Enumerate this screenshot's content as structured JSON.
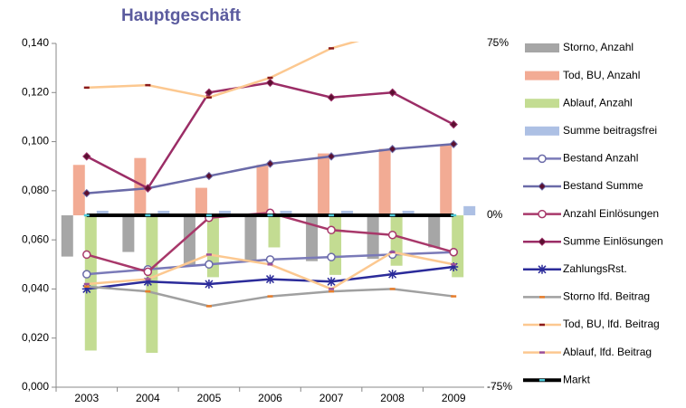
{
  "chart_data": {
    "type": "combo",
    "title": "Hauptgeschäft",
    "categories": [
      "2003",
      "2004",
      "2005",
      "2006",
      "2007",
      "2008",
      "2009"
    ],
    "ylim": [
      0,
      0.14
    ],
    "yticks": [
      {
        "value": 0,
        "label": "0,000"
      },
      {
        "value": 0.02,
        "label": "0,020"
      },
      {
        "value": 0.04,
        "label": "0,040"
      },
      {
        "value": 0.06,
        "label": "0,060"
      },
      {
        "value": 0.08,
        "label": "0,080"
      },
      {
        "value": 0.1,
        "label": "0,100"
      },
      {
        "value": 0.12,
        "label": "0,120"
      },
      {
        "value": 0.14,
        "label": "0,140"
      }
    ],
    "y2lim": [
      -75,
      75
    ],
    "y2ticks": [
      {
        "value": 75,
        "label": "75%"
      },
      {
        "value": 0,
        "label": "0%"
      },
      {
        "value": -75,
        "label": "-75%"
      }
    ],
    "series": [
      {
        "name": "Storno, Anzahl",
        "type": "bar",
        "axis": "y2",
        "color": "#a6a6a6",
        "values": [
          -18,
          -16,
          -22,
          -20,
          -20,
          -19,
          -14
        ]
      },
      {
        "name": "Tod, BU, Anzahl",
        "type": "bar",
        "axis": "y2",
        "color": "#f2ab94",
        "values": [
          22,
          25,
          12,
          22,
          27,
          29,
          31
        ]
      },
      {
        "name": "Ablauf, Anzahl",
        "type": "bar",
        "axis": "y2",
        "color": "#c3dc92",
        "values": [
          -59,
          -60,
          -27,
          -14,
          -26,
          -22,
          -27
        ]
      },
      {
        "name": "Summe beitragsfrei",
        "type": "bar",
        "axis": "y2",
        "color": "#adc0e4",
        "values": [
          2,
          2,
          2,
          2,
          2,
          2,
          4
        ]
      },
      {
        "name": "Bestand Anzahl",
        "type": "line",
        "color": "#7a7ab8",
        "marker": "circle",
        "marker_color": "#6a6aa8",
        "values": [
          0.046,
          0.048,
          0.05,
          0.052,
          0.053,
          0.054,
          0.055
        ]
      },
      {
        "name": "Bestand Summe",
        "type": "line",
        "color": "#6a6aa8",
        "marker": "diamond",
        "marker_color": "#5a1030",
        "values": [
          0.079,
          0.081,
          0.086,
          0.091,
          0.094,
          0.097,
          0.099
        ]
      },
      {
        "name": "Anzahl  Einlösungen",
        "type": "line",
        "color": "#a8386a",
        "marker": "circle",
        "marker_color": "#a8386a",
        "values": [
          0.054,
          0.047,
          0.069,
          0.071,
          0.064,
          0.062,
          0.055
        ]
      },
      {
        "name": "Summe Einlösungen",
        "type": "line",
        "color": "#9b2d66",
        "marker": "diamond",
        "marker_color": "#5a1030",
        "values": [
          0.094,
          0.081,
          0.12,
          0.124,
          0.118,
          0.12,
          0.107
        ]
      },
      {
        "name": "ZahlungsRst.",
        "type": "line",
        "color": "#2b2b9a",
        "marker": "star",
        "marker_color": "#2b2b9a",
        "values": [
          0.04,
          0.043,
          0.042,
          0.044,
          0.043,
          0.046,
          0.049
        ]
      },
      {
        "name": "Storno lfd. Beitrag",
        "type": "line",
        "color": "#a0a0a0",
        "marker": "dash",
        "marker_color": "#e87d2a",
        "values": [
          0.041,
          0.039,
          0.033,
          0.037,
          0.039,
          0.04,
          0.037
        ]
      },
      {
        "name": "Tod, BU, lfd. Beitrag",
        "type": "line",
        "color": "#fcc890",
        "marker": "dash",
        "marker_color": "#8b1a1a",
        "values": [
          0.122,
          0.123,
          0.118,
          0.126,
          0.138,
          0.145,
          0.15
        ]
      },
      {
        "name": "Ablauf, lfd. Beitrag",
        "type": "line",
        "color": "#fcc890",
        "marker": "dash",
        "marker_color": "#9b4f9b",
        "values": [
          0.042,
          0.044,
          0.054,
          0.05,
          0.04,
          0.055,
          0.05
        ]
      },
      {
        "name": "Markt",
        "type": "line",
        "axis": "y2",
        "color": "#000000",
        "width": 4,
        "marker": "dash",
        "marker_color": "#4bc8d8",
        "values": [
          0,
          0,
          0,
          0,
          0,
          0,
          0
        ]
      }
    ]
  }
}
